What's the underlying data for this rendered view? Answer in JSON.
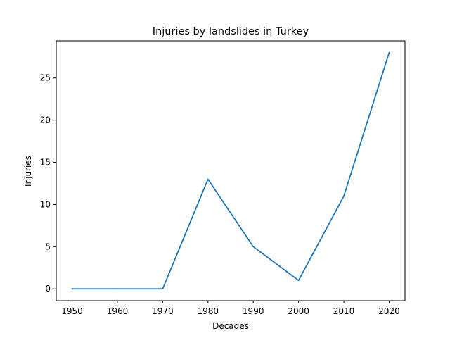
{
  "chart_data": {
    "type": "line",
    "title": "Injuries by landslides in Turkey",
    "xlabel": "Decades",
    "ylabel": "Injuries",
    "x": [
      1950,
      1960,
      1970,
      1980,
      1990,
      2000,
      2010,
      2020
    ],
    "series": [
      {
        "values": [
          0,
          0,
          0,
          13,
          5,
          1,
          11,
          28
        ],
        "color": "#1f77b4"
      }
    ],
    "xticks": [
      1950,
      1960,
      1970,
      1980,
      1990,
      2000,
      2010,
      2020
    ],
    "yticks": [
      0,
      5,
      10,
      15,
      20,
      25
    ],
    "xlim": [
      1946.5,
      2023.5
    ],
    "ylim": [
      -1.4,
      29.4
    ],
    "grid": false,
    "legend": "none"
  }
}
